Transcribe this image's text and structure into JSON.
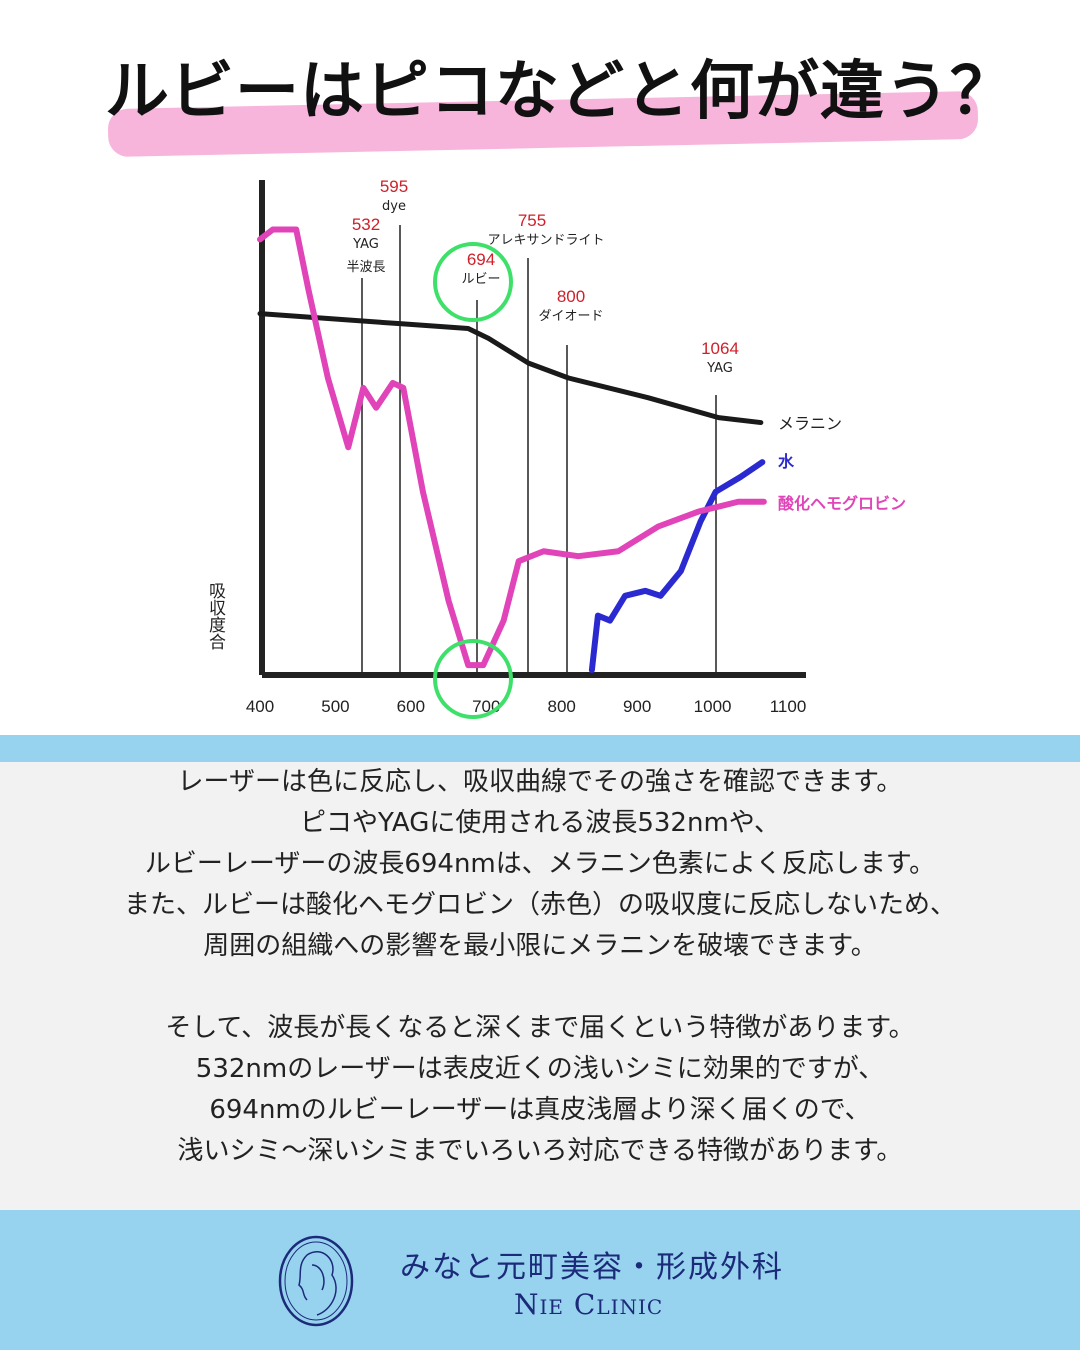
{
  "header": {
    "title": "ルビーはピコなどと何が違う？",
    "highlight_color": "#f7b5dc"
  },
  "chart_data": {
    "type": "line",
    "title": "",
    "xlabel": "",
    "ylabel": "吸収度合",
    "xlim": [
      400,
      1100
    ],
    "ylim": [
      0,
      100
    ],
    "x_ticks": [
      "400",
      "500",
      "600",
      "700",
      "800",
      "900",
      "1000",
      "1100"
    ],
    "grid": false,
    "series": [
      {
        "name": "メラニン",
        "color": "#1a1a1a",
        "points": [
          [
            400,
            73
          ],
          [
            583,
            71
          ],
          [
            676,
            70
          ],
          [
            703,
            68
          ],
          [
            756,
            63
          ],
          [
            809,
            60
          ],
          [
            915,
            56
          ],
          [
            1008,
            52
          ],
          [
            1064,
            51
          ]
        ]
      },
      {
        "name": "水",
        "color": "#2a2ad0",
        "points": [
          [
            840,
            1
          ],
          [
            848,
            12
          ],
          [
            864,
            11
          ],
          [
            884,
            16
          ],
          [
            911,
            17
          ],
          [
            931,
            16
          ],
          [
            958,
            21
          ],
          [
            984,
            31
          ],
          [
            1004,
            37
          ],
          [
            1037,
            40
          ],
          [
            1066,
            43
          ]
        ]
      },
      {
        "name": "酸化ヘモグロビン",
        "color": "#e044b8",
        "points": [
          [
            400,
            88
          ],
          [
            417,
            90
          ],
          [
            448,
            90
          ],
          [
            464,
            78
          ],
          [
            490,
            60
          ],
          [
            517,
            46
          ],
          [
            537,
            58
          ],
          [
            554,
            54
          ],
          [
            576,
            59
          ],
          [
            590,
            58
          ],
          [
            616,
            37
          ],
          [
            650,
            15
          ],
          [
            676,
            2
          ],
          [
            696,
            2
          ],
          [
            723,
            11
          ],
          [
            743,
            23
          ],
          [
            776,
            25
          ],
          [
            822,
            24
          ],
          [
            875,
            25
          ],
          [
            928,
            30
          ],
          [
            981,
            33
          ],
          [
            1034,
            35
          ],
          [
            1068,
            35
          ]
        ]
      }
    ],
    "wavelength_markers": [
      {
        "value": "532",
        "labels": [
          "YAG",
          "半波長"
        ]
      },
      {
        "value": "595",
        "labels": [
          "dye"
        ]
      },
      {
        "value": "694",
        "labels": [
          "ルビー"
        ],
        "highlighted": true
      },
      {
        "value": "755",
        "labels": [
          "アレキサンドライト"
        ]
      },
      {
        "value": "800",
        "labels": [
          "ダイオード"
        ]
      },
      {
        "value": "1064",
        "labels": [
          "YAG"
        ]
      }
    ],
    "marker_value_color": "#d0202a",
    "highlight_circle_color": "#3ee06a"
  },
  "body": {
    "paragraph1": [
      "レーザーは色に反応し、吸収曲線でその強さを確認できます。",
      "ピコやYAGに使用される波長532nmや、",
      "ルビーレーザーの波長694nmは、メラニン色素によく反応します。",
      "また、ルビーは酸化ヘモグロビン（赤色）の吸収度に反応しないため、",
      "周囲の組織への影響を最小限にメラニンを破壊できます。"
    ],
    "paragraph2": [
      "そして、波長が長くなると深くまで届くという特徴があります。",
      "532nmのレーザーは表皮近くの浅いシミに効果的ですが、",
      "694nmのルビーレーザーは真皮浅層より深く届くので、",
      "浅いシミ〜深いシミまでいろいろ対応できる特徴があります。"
    ]
  },
  "footer": {
    "clinic_name_jp": "みなと元町美容・形成外科",
    "clinic_name_en": "Nie Clinic",
    "logo": "woman-profile-cameo-logo",
    "bg_color": "#97d3ee"
  }
}
